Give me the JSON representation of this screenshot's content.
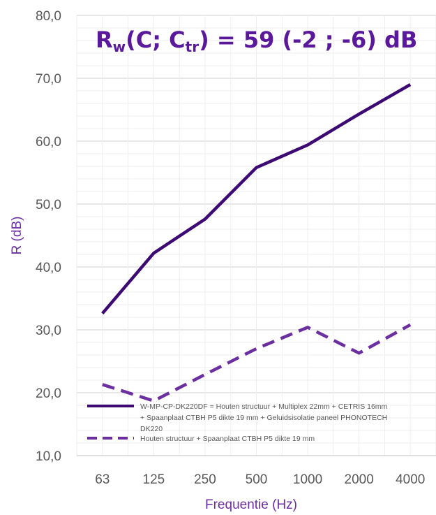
{
  "chart_data": {
    "type": "line",
    "categories": [
      "63",
      "125",
      "250",
      "500",
      "1000",
      "2000",
      "4000"
    ],
    "series": [
      {
        "name_lines": [
          "W-MP-CP-DK220DF = Houten structuur + Multiplex 22mm + CETRIS 16mm",
          "+ Spaanplaat CTBH P5 dikte 19 mm + Geluidsisolatie paneel PHONOTECH",
          "DK220"
        ],
        "values": [
          32.6,
          42.2,
          47.6,
          55.8,
          59.4,
          64.3,
          69.0
        ],
        "color": "#3d0a73",
        "dash": "solid"
      },
      {
        "name_lines": [
          "Houten structuur + Spaanplaat CTBH P5 dikte 19 mm"
        ],
        "values": [
          21.3,
          18.7,
          22.9,
          27.0,
          30.4,
          26.3,
          30.8
        ],
        "color": "#6b2fa0",
        "dash": "dashed"
      }
    ],
    "ylabel": "R (dB)",
    "xlabel": "Frequentie (Hz)",
    "ylim": [
      10,
      80
    ],
    "yticks": [
      "10,0",
      "20,0",
      "30,0",
      "40,0",
      "50,0",
      "60,0",
      "70,0",
      "80,0"
    ],
    "grid": true,
    "legend_position": "bottom-left",
    "label_color": "#6b2fa0",
    "title_color": "#5a189a"
  },
  "rating": {
    "prefix": "R",
    "sub_w": "w",
    "open": "(C; C",
    "sub_tr": "tr",
    "close": ") = 59 (-2 ; -6) dB"
  }
}
